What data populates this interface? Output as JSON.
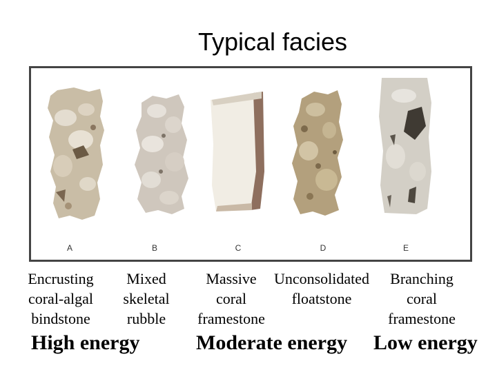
{
  "title": "Typical facies",
  "samples": [
    {
      "letter": "A",
      "caption": "Encrusting\ncoral-algal\nbindstone"
    },
    {
      "letter": "B",
      "caption": "Mixed\nskeletal\nrubble"
    },
    {
      "letter": "C",
      "caption": "Massive\ncoral\nframestone"
    },
    {
      "letter": "D",
      "caption": "Unconsolidated\nfloatstone"
    },
    {
      "letter": "E",
      "caption": "Branching\ncoral\nframestone"
    }
  ],
  "energy_labels": {
    "high": "High energy",
    "moderate": "Moderate energy",
    "low": "Low energy"
  }
}
